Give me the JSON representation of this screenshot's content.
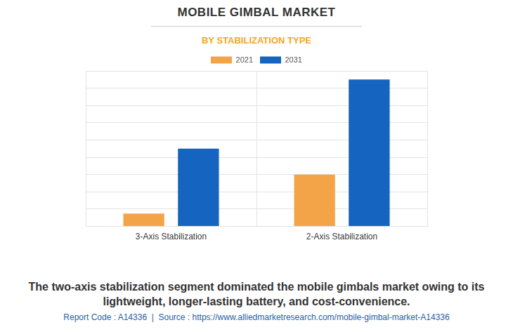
{
  "chart_data": {
    "type": "bar",
    "title": "MOBILE GIMBAL MARKET",
    "subtitle": "BY STABILIZATION TYPE",
    "categories": [
      "3-Axis Stabilization",
      "2-Axis Stabilization"
    ],
    "series": [
      {
        "name": "2021",
        "color": "#f4a448",
        "values": [
          0.75,
          3.0
        ]
      },
      {
        "name": "2031",
        "color": "#1565c0",
        "values": [
          4.5,
          8.5
        ]
      }
    ],
    "ylim": [
      0,
      9
    ],
    "yticks": [
      0,
      1,
      2,
      3,
      4,
      5,
      6,
      7,
      8,
      9
    ],
    "grid": true,
    "legend": "top",
    "tick_labels": "x",
    "annotations": [
      "The two-axis stabilization segment dominated the mobile gimbals market owing to its lightweight, longer-lasting battery, and cost-convenience.",
      "Report Code : A14336  |  Source : https://www.alliedmarketresearch.com/mobile-gimbal-market-A14336"
    ]
  }
}
